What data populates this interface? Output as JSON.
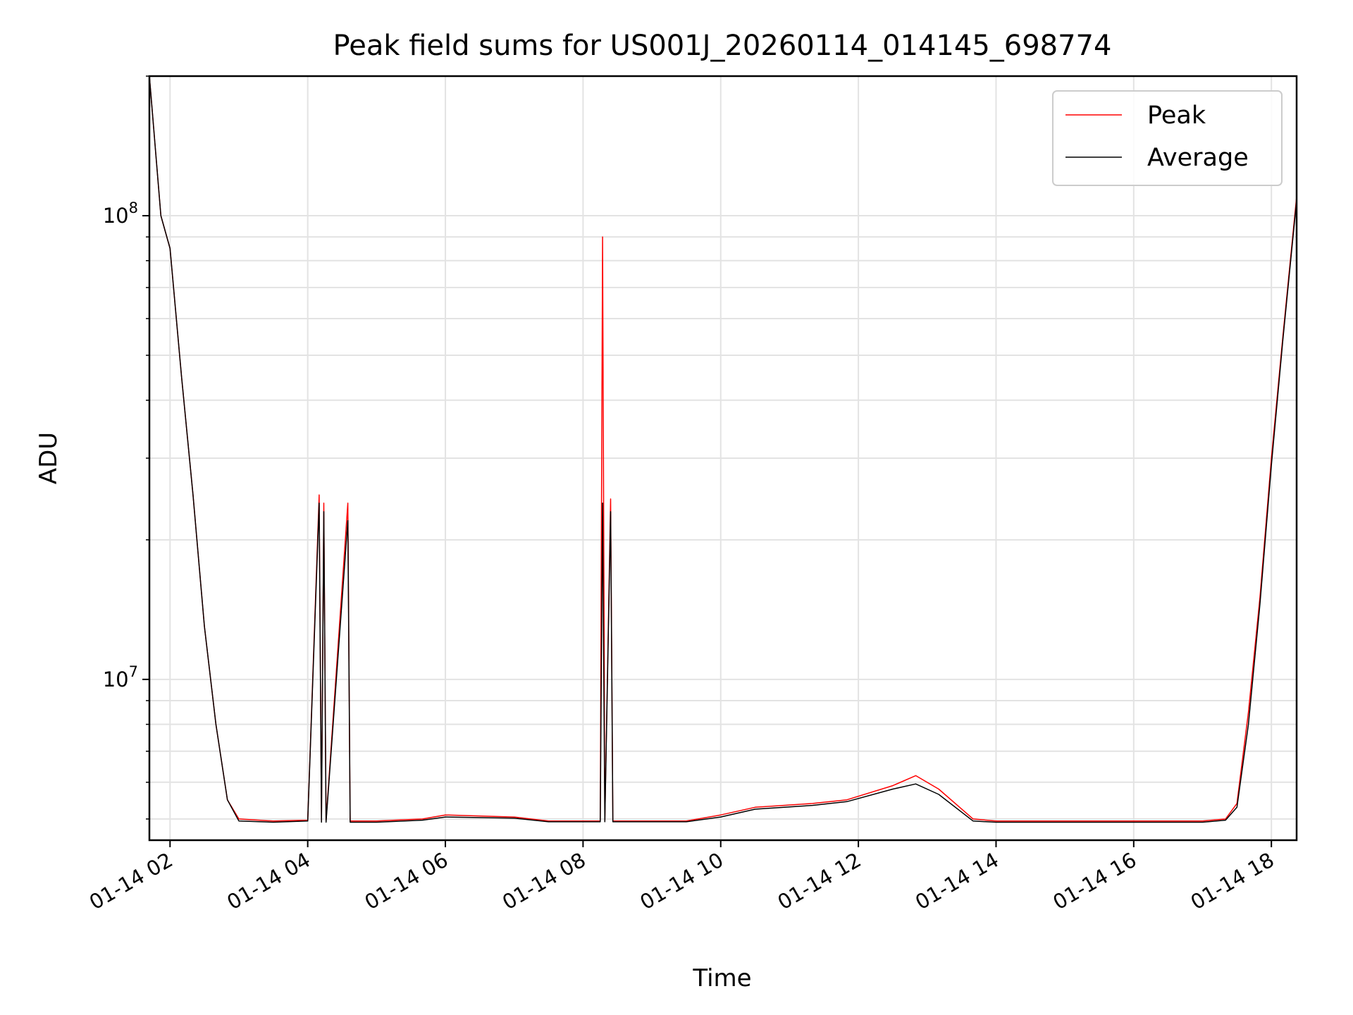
{
  "chart_data": {
    "type": "line",
    "title": "Peak field sums for US001J_20260114_014145_698774",
    "xlabel": "Time",
    "ylabel": "ADU",
    "yscale": "log",
    "grid": true,
    "legend_placement": "top-right",
    "xlim": [
      "2026-01-14 01:42",
      "2026-01-14 18:22"
    ],
    "ylim": [
      4500000,
      200000000
    ],
    "x_ticks": [
      "01-14 02",
      "01-14 04",
      "01-14 06",
      "01-14 08",
      "01-14 10",
      "01-14 12",
      "01-14 14",
      "01-14 16",
      "01-14 18"
    ],
    "y_ticks": [
      {
        "base": "10",
        "exp": "7",
        "value": 10000000
      },
      {
        "base": "10",
        "exp": "8",
        "value": 100000000
      }
    ],
    "series": [
      {
        "name": "Peak",
        "color": "#ff0000",
        "points": [
          [
            "2026-01-14 01:42",
            200000000
          ],
          [
            "2026-01-14 01:52",
            100000000
          ],
          [
            "2026-01-14 02:00",
            85000000
          ],
          [
            "2026-01-14 02:10",
            45000000
          ],
          [
            "2026-01-14 02:20",
            25000000
          ],
          [
            "2026-01-14 02:30",
            13000000
          ],
          [
            "2026-01-14 02:40",
            8000000
          ],
          [
            "2026-01-14 02:50",
            5500000
          ],
          [
            "2026-01-14 03:00",
            5000000
          ],
          [
            "2026-01-14 03:30",
            4950000
          ],
          [
            "2026-01-14 04:00",
            4970000
          ],
          [
            "2026-01-14 04:10",
            25000000
          ],
          [
            "2026-01-14 04:12",
            4950000
          ],
          [
            "2026-01-14 04:14",
            24000000
          ],
          [
            "2026-01-14 04:16",
            4950000
          ],
          [
            "2026-01-14 04:35",
            24000000
          ],
          [
            "2026-01-14 04:37",
            4950000
          ],
          [
            "2026-01-14 05:00",
            4950000
          ],
          [
            "2026-01-14 05:40",
            5000000
          ],
          [
            "2026-01-14 06:00",
            5100000
          ],
          [
            "2026-01-14 07:00",
            5050000
          ],
          [
            "2026-01-14 07:30",
            4950000
          ],
          [
            "2026-01-14 08:15",
            4950000
          ],
          [
            "2026-01-14 08:17",
            90000000
          ],
          [
            "2026-01-14 08:19",
            4950000
          ],
          [
            "2026-01-14 08:24",
            24500000
          ],
          [
            "2026-01-14 08:26",
            4950000
          ],
          [
            "2026-01-14 09:30",
            4950000
          ],
          [
            "2026-01-14 10:00",
            5100000
          ],
          [
            "2026-01-14 10:30",
            5300000
          ],
          [
            "2026-01-14 11:20",
            5400000
          ],
          [
            "2026-01-14 11:50",
            5500000
          ],
          [
            "2026-01-14 12:30",
            5900000
          ],
          [
            "2026-01-14 12:50",
            6200000
          ],
          [
            "2026-01-14 13:10",
            5800000
          ],
          [
            "2026-01-14 13:40",
            5000000
          ],
          [
            "2026-01-14 14:00",
            4950000
          ],
          [
            "2026-01-14 15:00",
            4950000
          ],
          [
            "2026-01-14 16:00",
            4950000
          ],
          [
            "2026-01-14 17:00",
            4950000
          ],
          [
            "2026-01-14 17:20",
            5000000
          ],
          [
            "2026-01-14 17:30",
            5400000
          ],
          [
            "2026-01-14 17:40",
            8500000
          ],
          [
            "2026-01-14 17:50",
            15000000
          ],
          [
            "2026-01-14 18:00",
            30000000
          ],
          [
            "2026-01-14 18:10",
            55000000
          ],
          [
            "2026-01-14 18:22",
            110000000
          ]
        ]
      },
      {
        "name": "Average",
        "color": "#000000",
        "points": [
          [
            "2026-01-14 01:42",
            200000000
          ],
          [
            "2026-01-14 01:52",
            100000000
          ],
          [
            "2026-01-14 02:00",
            85000000
          ],
          [
            "2026-01-14 02:10",
            45000000
          ],
          [
            "2026-01-14 02:20",
            25000000
          ],
          [
            "2026-01-14 02:30",
            13000000
          ],
          [
            "2026-01-14 02:40",
            8000000
          ],
          [
            "2026-01-14 02:50",
            5500000
          ],
          [
            "2026-01-14 03:00",
            4950000
          ],
          [
            "2026-01-14 03:30",
            4920000
          ],
          [
            "2026-01-14 04:00",
            4950000
          ],
          [
            "2026-01-14 04:10",
            24000000
          ],
          [
            "2026-01-14 04:12",
            4920000
          ],
          [
            "2026-01-14 04:14",
            23000000
          ],
          [
            "2026-01-14 04:16",
            4920000
          ],
          [
            "2026-01-14 04:35",
            22000000
          ],
          [
            "2026-01-14 04:37",
            4920000
          ],
          [
            "2026-01-14 05:00",
            4920000
          ],
          [
            "2026-01-14 05:40",
            4970000
          ],
          [
            "2026-01-14 06:00",
            5050000
          ],
          [
            "2026-01-14 07:00",
            5020000
          ],
          [
            "2026-01-14 07:30",
            4930000
          ],
          [
            "2026-01-14 08:15",
            4930000
          ],
          [
            "2026-01-14 08:17",
            24000000
          ],
          [
            "2026-01-14 08:19",
            4930000
          ],
          [
            "2026-01-14 08:24",
            23000000
          ],
          [
            "2026-01-14 08:26",
            4930000
          ],
          [
            "2026-01-14 09:30",
            4930000
          ],
          [
            "2026-01-14 10:00",
            5050000
          ],
          [
            "2026-01-14 10:30",
            5250000
          ],
          [
            "2026-01-14 11:20",
            5350000
          ],
          [
            "2026-01-14 11:50",
            5450000
          ],
          [
            "2026-01-14 12:30",
            5800000
          ],
          [
            "2026-01-14 12:50",
            5950000
          ],
          [
            "2026-01-14 13:10",
            5650000
          ],
          [
            "2026-01-14 13:40",
            4950000
          ],
          [
            "2026-01-14 14:00",
            4920000
          ],
          [
            "2026-01-14 15:00",
            4920000
          ],
          [
            "2026-01-14 16:00",
            4920000
          ],
          [
            "2026-01-14 17:00",
            4920000
          ],
          [
            "2026-01-14 17:20",
            4970000
          ],
          [
            "2026-01-14 17:30",
            5300000
          ],
          [
            "2026-01-14 17:40",
            8000000
          ],
          [
            "2026-01-14 17:50",
            14500000
          ],
          [
            "2026-01-14 18:00",
            29000000
          ],
          [
            "2026-01-14 18:10",
            54000000
          ],
          [
            "2026-01-14 18:22",
            108000000
          ]
        ]
      }
    ]
  }
}
